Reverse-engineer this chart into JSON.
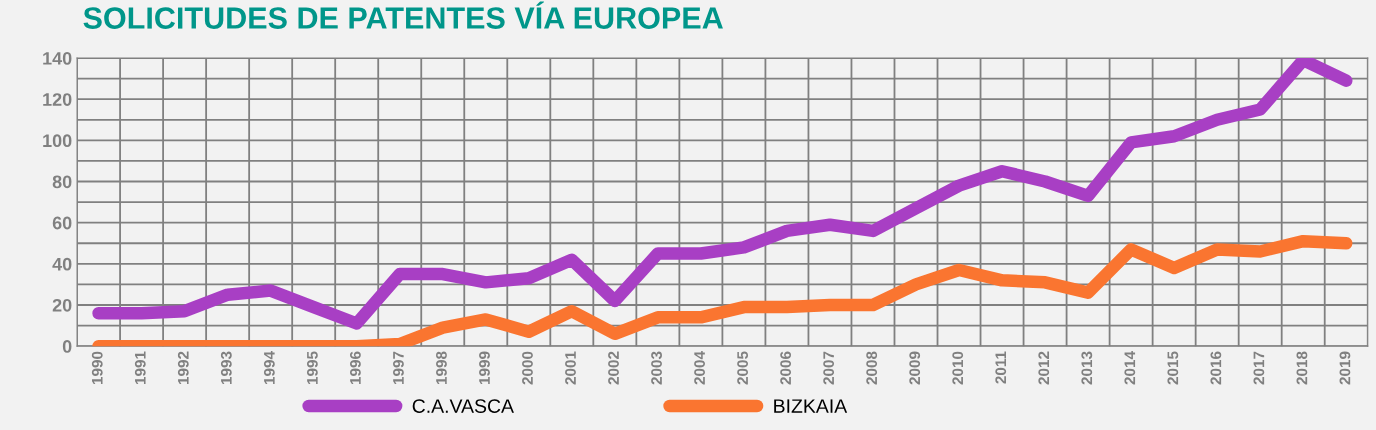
{
  "chart_data": {
    "type": "line",
    "title": "SOLICITUDES DE PATENTES VÍA EUROPEA",
    "categories": [
      "1990",
      "1991",
      "1992",
      "1993",
      "1994",
      "1995",
      "1996",
      "1997",
      "1998",
      "1999",
      "2000",
      "2001",
      "2002",
      "2003",
      "2004",
      "2005",
      "2006",
      "2007",
      "2008",
      "2009",
      "2010",
      "2011",
      "2012",
      "2013",
      "2014",
      "2015",
      "2016",
      "2017",
      "2018",
      "2019"
    ],
    "series": [
      {
        "name": "C.A.VASCA",
        "color": "#a83fc4",
        "values": [
          16,
          16,
          17,
          25,
          27,
          19,
          11,
          35,
          35,
          31,
          33,
          42,
          22,
          45,
          45,
          48,
          56,
          59,
          56,
          67,
          78,
          85,
          80,
          73,
          99,
          102,
          110,
          115,
          139,
          129
        ]
      },
      {
        "name": "BIZKAIA",
        "color": "#fa7530",
        "values": [
          0,
          0,
          0,
          0,
          0,
          0,
          0,
          1,
          9,
          13,
          7,
          17,
          6,
          14,
          14,
          19,
          19,
          20,
          20,
          30,
          37,
          32,
          31,
          26,
          47,
          38,
          47,
          46,
          51,
          50
        ]
      }
    ],
    "ylim": [
      0,
      140
    ],
    "yticks": [
      0,
      {
        "value": 10,
        "label": null
      },
      20,
      {
        "value": 30,
        "label": null
      },
      40,
      {
        "value": 50,
        "label": null
      },
      60,
      {
        "value": 70,
        "label": null
      },
      80,
      {
        "value": 90,
        "label": null
      },
      100,
      {
        "value": 110,
        "label": null
      },
      120,
      {
        "value": 130,
        "label": null
      },
      140
    ],
    "grid": true,
    "legend": "bottom",
    "marker": "none",
    "line_style": "solid"
  }
}
